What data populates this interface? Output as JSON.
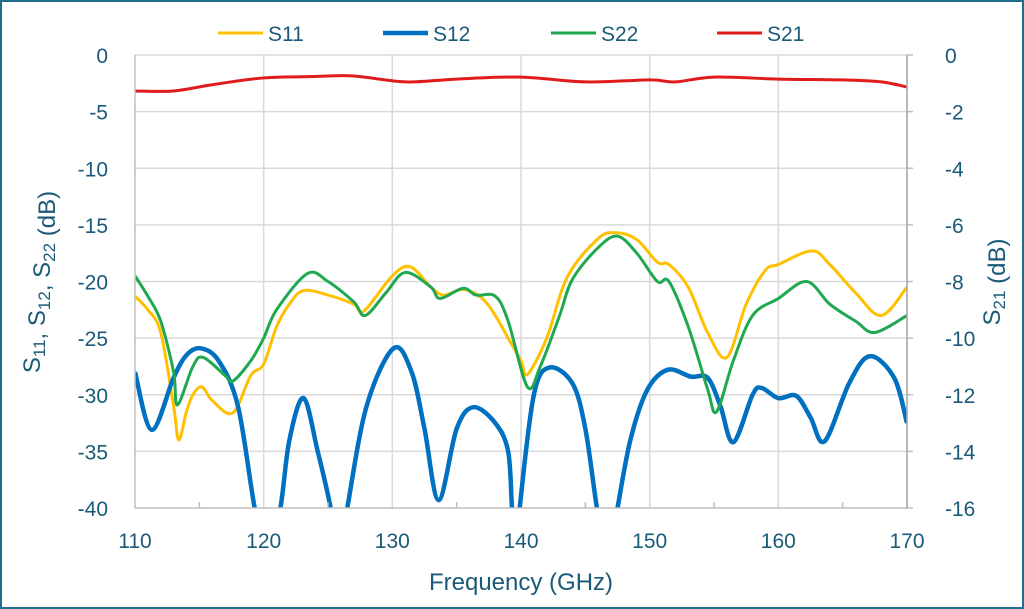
{
  "chart_data": {
    "type": "line",
    "title": "",
    "xlabel": "Frequency (GHz)",
    "ylabel": "S11, S12, S22 (dB)",
    "y2label": "S21 (dB)",
    "xlim": [
      110,
      170
    ],
    "ylim": [
      -40,
      0
    ],
    "y2lim": [
      -16,
      0
    ],
    "xticks": [
      110,
      120,
      130,
      140,
      150,
      160,
      170
    ],
    "yticks": [
      0,
      -5,
      -10,
      -15,
      -20,
      -25,
      -30,
      -35,
      -40
    ],
    "y2ticks": [
      0,
      -2,
      -4,
      -6,
      -8,
      -10,
      -12,
      -14,
      -16
    ],
    "grid": true,
    "legend_position": "top",
    "series": [
      {
        "name": "S11",
        "axis": "left",
        "color": "#FFC000",
        "x": [
          110,
          111,
          112,
          113,
          113.4,
          114,
          114.5,
          115.2,
          116,
          117.6,
          119,
          120,
          121,
          122,
          123.1,
          125,
          127,
          127.8,
          130,
          131.4,
          133,
          134,
          135.5,
          137,
          138,
          139,
          140,
          140.5,
          142,
          143.6,
          146,
          147.4,
          149,
          150.6,
          151.5,
          153,
          154.5,
          156,
          157.5,
          159,
          160,
          162.6,
          164,
          166,
          168,
          170
        ],
        "y": [
          -21.3,
          -22.5,
          -24.5,
          -31,
          -34,
          -31.5,
          -30,
          -29.3,
          -30.5,
          -31.6,
          -28.3,
          -27.3,
          -24,
          -22,
          -20.8,
          -21.2,
          -22,
          -22.6,
          -19.5,
          -18.7,
          -20.5,
          -21.2,
          -20.7,
          -21.5,
          -23,
          -25,
          -27,
          -28.2,
          -25,
          -19.6,
          -16.2,
          -15.7,
          -16.3,
          -18.3,
          -18.5,
          -20.5,
          -24.5,
          -26.7,
          -22,
          -19,
          -18.5,
          -17.3,
          -18.5,
          -21,
          -23,
          -20.5
        ]
      },
      {
        "name": "S12",
        "axis": "left",
        "color": "#0070C0",
        "x": [
          110,
          111.3,
          113,
          114,
          115.1,
          116.5,
          118,
          119.3,
          120.3,
          121.3,
          122,
          123.1,
          124.2,
          125.2,
          125.8,
          126.5,
          128,
          130.1,
          131.5,
          132.5,
          133.6,
          135,
          136.3,
          138,
          139,
          139.3,
          139.6,
          139.9,
          141,
          142.2,
          144,
          145,
          145.9,
          146.7,
          147.5,
          148.5,
          149.8,
          151.4,
          153.2,
          154.5,
          155.5,
          156.5,
          158,
          158.7,
          160,
          161.4,
          162.5,
          163.6,
          165.5,
          167.1,
          169,
          170
        ],
        "y": [
          -28,
          -33.1,
          -28.5,
          -26.5,
          -25.9,
          -27,
          -31,
          -40,
          -45,
          -40,
          -34,
          -30.3,
          -35,
          -40,
          -45,
          -40,
          -31,
          -25.9,
          -28,
          -33,
          -39.3,
          -33,
          -31.1,
          -32.5,
          -35,
          -40,
          -45,
          -40,
          -30,
          -27.6,
          -29,
          -33,
          -40,
          -45,
          -40,
          -34,
          -29.6,
          -27.8,
          -28.4,
          -28.5,
          -31,
          -34.2,
          -30,
          -29.4,
          -30.3,
          -30.1,
          -32,
          -34.1,
          -29,
          -26.6,
          -28.5,
          -32.5
        ]
      },
      {
        "name": "S22",
        "axis": "left",
        "color": "#1FA84F",
        "x": [
          110,
          111,
          112,
          113,
          113.3,
          114.5,
          115.3,
          117,
          117.6,
          119,
          120,
          121,
          123.4,
          125,
          127,
          127.9,
          129.5,
          131,
          133,
          133.7,
          135.5,
          136.5,
          138,
          139,
          140.5,
          141.5,
          143,
          144,
          146,
          147.5,
          149,
          150.6,
          151.5,
          153,
          154.5,
          155.2,
          156.5,
          158,
          160,
          162.2,
          164,
          166,
          167.5,
          170
        ],
        "y": [
          -19.5,
          -21.3,
          -23.5,
          -28,
          -30.9,
          -27.5,
          -26.7,
          -28.3,
          -28.8,
          -27,
          -25,
          -22.5,
          -19.3,
          -20,
          -21.8,
          -23,
          -21,
          -19.2,
          -20.5,
          -21.5,
          -20.6,
          -21.2,
          -21.3,
          -23.5,
          -29.3,
          -27.5,
          -23,
          -19.8,
          -17,
          -16,
          -17.5,
          -20,
          -20,
          -24,
          -29.5,
          -31.5,
          -27,
          -23,
          -21.5,
          -20,
          -22,
          -23.5,
          -24.5,
          -23
        ]
      },
      {
        "name": "S21",
        "axis": "right",
        "color": "#E01B1B",
        "x": [
          110,
          113,
          116,
          120,
          124,
          127,
          131,
          135,
          140,
          145,
          150,
          152,
          155,
          160,
          165,
          168,
          170
        ],
        "y": [
          -1.27,
          -1.27,
          -1.05,
          -0.81,
          -0.76,
          -0.74,
          -0.95,
          -0.85,
          -0.78,
          -0.95,
          -0.88,
          -0.95,
          -0.78,
          -0.85,
          -0.88,
          -0.95,
          -1.13
        ]
      }
    ]
  }
}
